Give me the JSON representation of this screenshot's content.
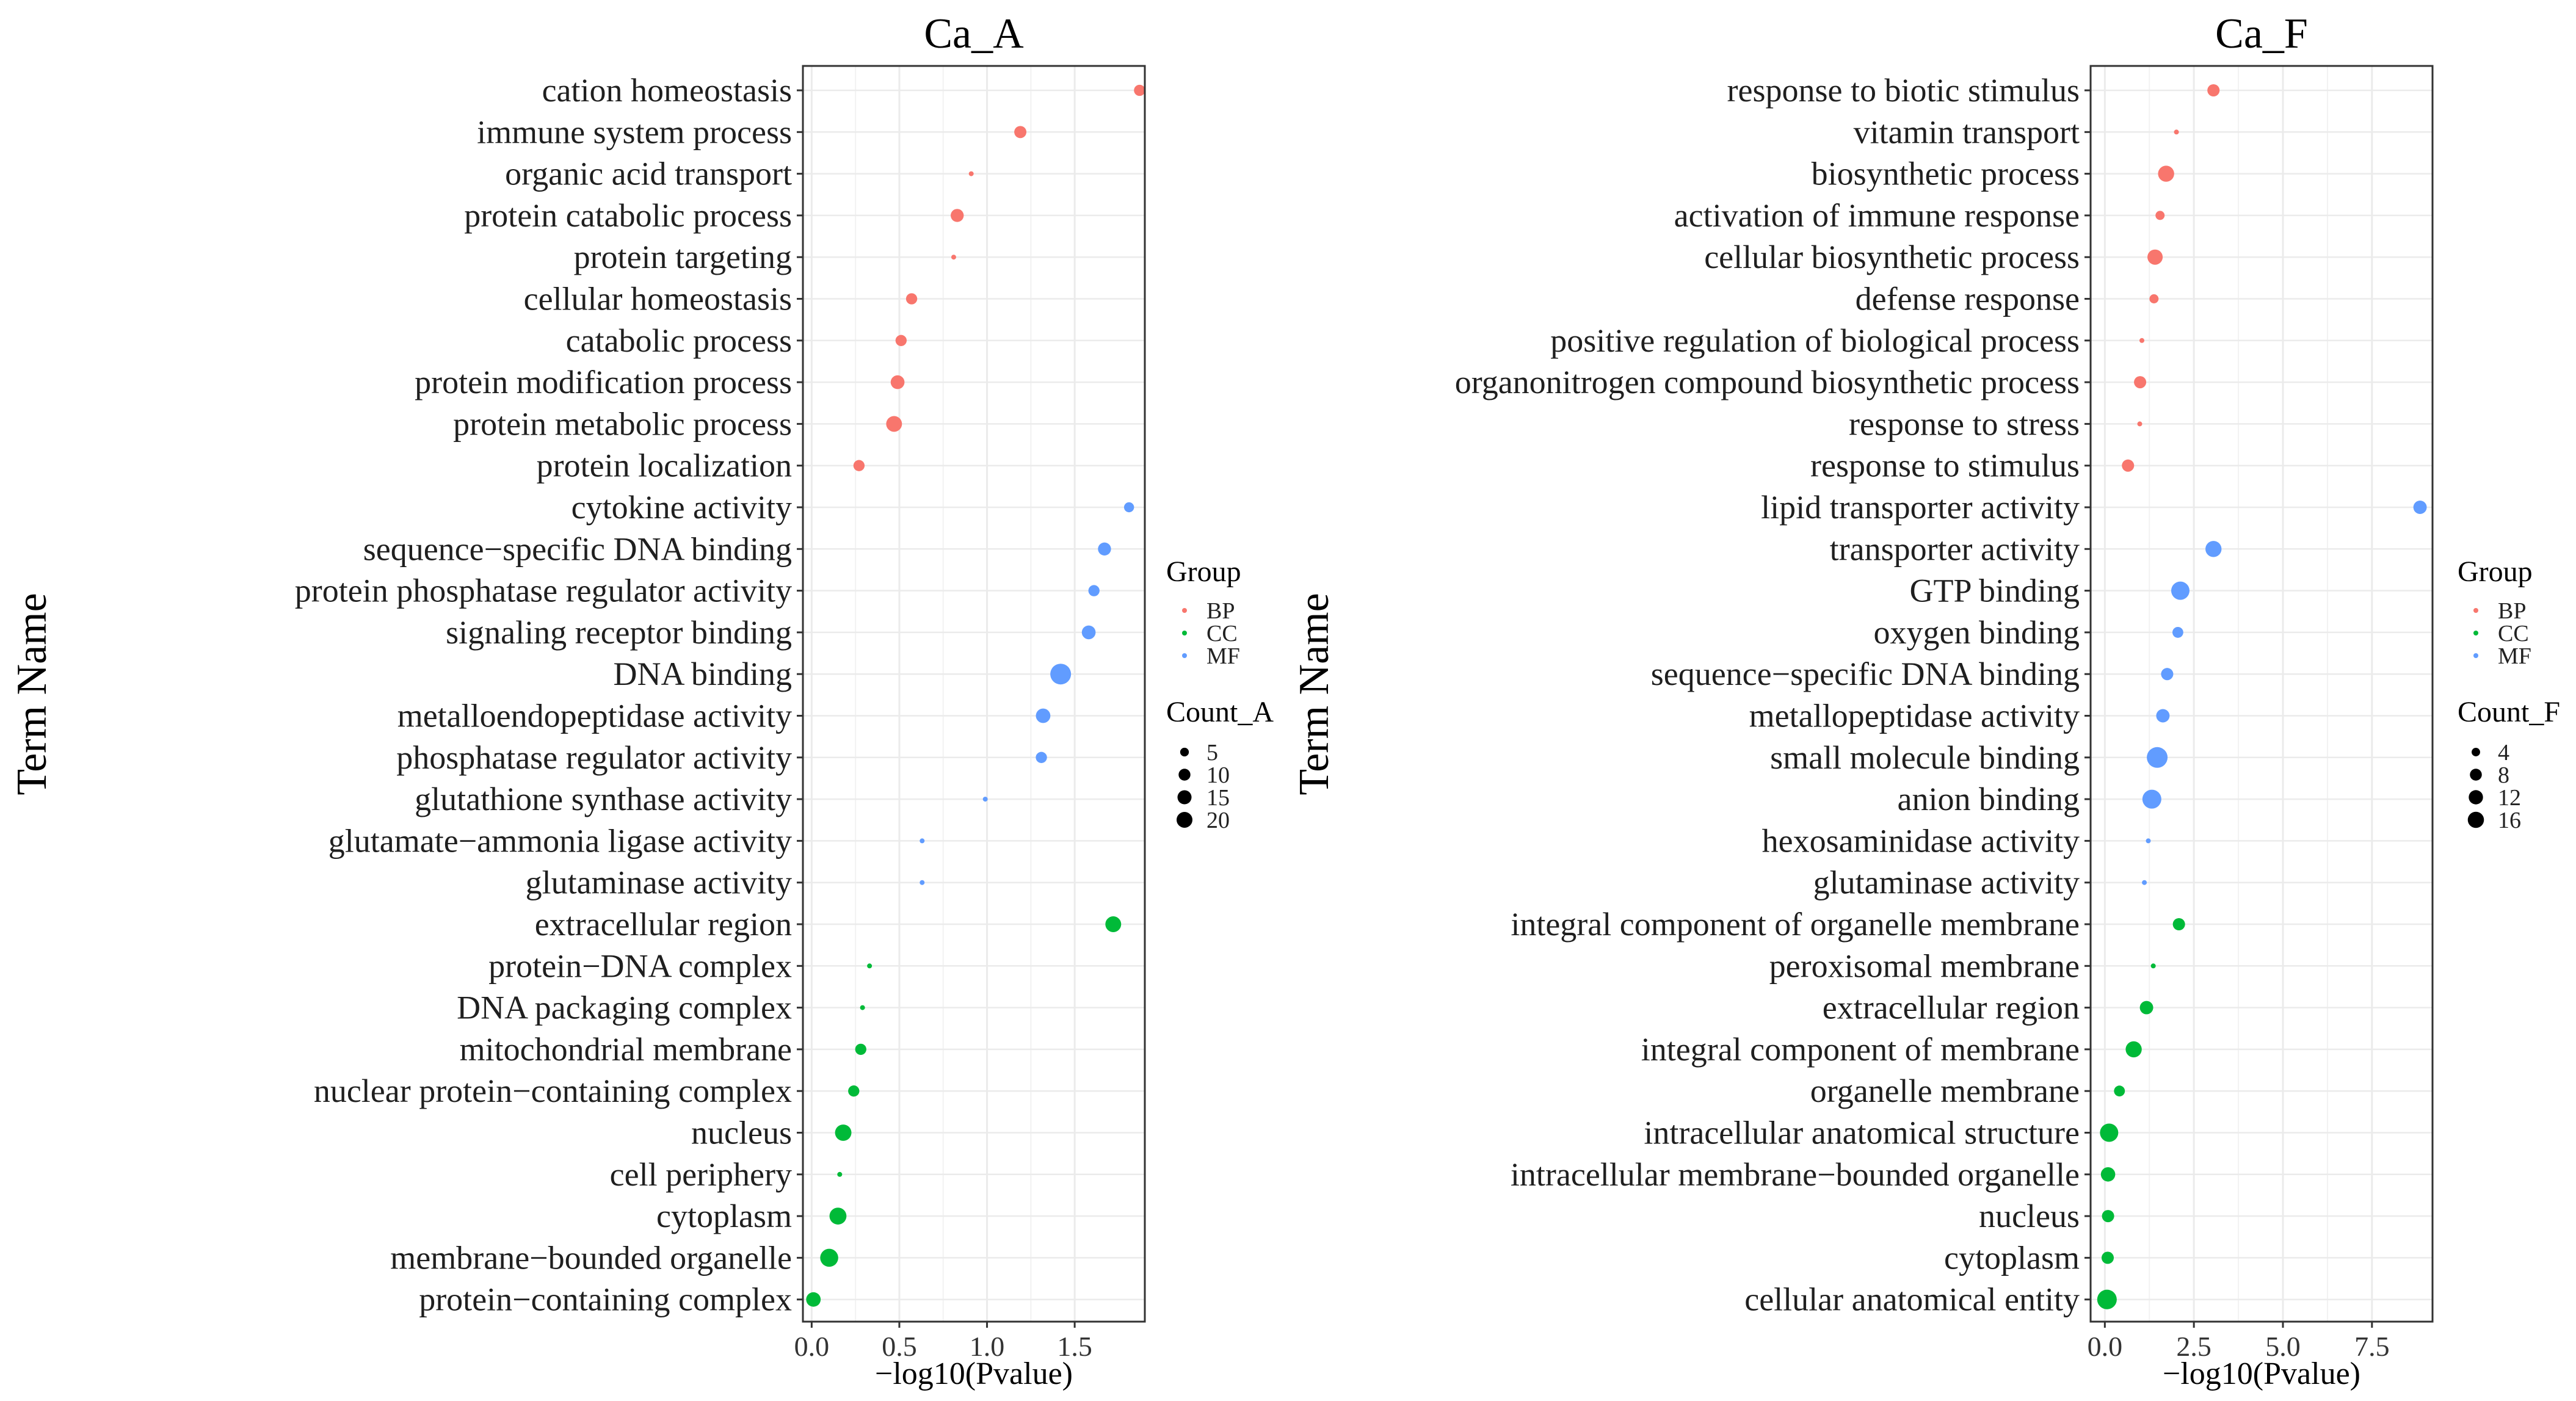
{
  "figure": {
    "y_axis_label": "Term Name"
  },
  "chart_data": [
    {
      "type": "scatter",
      "title": "Ca_A",
      "xlabel": "−log10(Pvalue)",
      "ylabel": "Term Name",
      "xlim": [
        -0.05,
        1.9
      ],
      "xticks": [
        0.0,
        0.5,
        1.0,
        1.5
      ],
      "xtick_labels": [
        "0.0",
        "0.5",
        "1.0",
        "1.5"
      ],
      "grid": true,
      "group_legend_title": "Group",
      "groups": [
        {
          "name": "BP",
          "color": "#F8766D"
        },
        {
          "name": "CC",
          "color": "#00BA38"
        },
        {
          "name": "MF",
          "color": "#619CFF"
        }
      ],
      "size_legend_title": "Count_A",
      "size_legend_values": [
        5,
        10,
        15,
        20
      ],
      "size_range": [
        2,
        21
      ],
      "points": [
        {
          "term": "cation homeostasis",
          "x": 1.87,
          "count": 5,
          "group": "BP"
        },
        {
          "term": "immune system process",
          "x": 1.19,
          "count": 6,
          "group": "BP"
        },
        {
          "term": "organic acid transport",
          "x": 0.91,
          "count": 2,
          "group": "BP"
        },
        {
          "term": "protein catabolic process",
          "x": 0.83,
          "count": 7,
          "group": "BP"
        },
        {
          "term": "protein targeting",
          "x": 0.81,
          "count": 2,
          "group": "BP"
        },
        {
          "term": "cellular homeostasis",
          "x": 0.57,
          "count": 5,
          "group": "BP"
        },
        {
          "term": "catabolic process",
          "x": 0.51,
          "count": 5,
          "group": "BP"
        },
        {
          "term": "protein modification process",
          "x": 0.49,
          "count": 8,
          "group": "BP"
        },
        {
          "term": "protein metabolic process",
          "x": 0.47,
          "count": 11,
          "group": "BP"
        },
        {
          "term": "protein localization",
          "x": 0.27,
          "count": 5,
          "group": "BP"
        },
        {
          "term": "cytokine activity",
          "x": 1.81,
          "count": 4,
          "group": "MF"
        },
        {
          "term": "sequence−specific DNA binding",
          "x": 1.67,
          "count": 7,
          "group": "MF"
        },
        {
          "term": "protein phosphatase regulator activity",
          "x": 1.61,
          "count": 5,
          "group": "MF"
        },
        {
          "term": "signaling receptor binding",
          "x": 1.58,
          "count": 8,
          "group": "MF"
        },
        {
          "term": "DNA binding",
          "x": 1.42,
          "count": 21,
          "group": "MF"
        },
        {
          "term": "metalloendopeptidase activity",
          "x": 1.32,
          "count": 9,
          "group": "MF"
        },
        {
          "term": "phosphatase regulator activity",
          "x": 1.31,
          "count": 5,
          "group": "MF"
        },
        {
          "term": "glutathione synthase activity",
          "x": 0.99,
          "count": 2,
          "group": "MF"
        },
        {
          "term": "glutamate−ammonia ligase activity",
          "x": 0.63,
          "count": 2,
          "group": "MF"
        },
        {
          "term": "glutaminase activity",
          "x": 0.63,
          "count": 2,
          "group": "MF"
        },
        {
          "term": "extracellular region",
          "x": 1.72,
          "count": 11,
          "group": "CC"
        },
        {
          "term": "protein−DNA complex",
          "x": 0.33,
          "count": 2,
          "group": "CC"
        },
        {
          "term": "DNA packaging complex",
          "x": 0.29,
          "count": 2,
          "group": "CC"
        },
        {
          "term": "mitochondrial membrane",
          "x": 0.28,
          "count": 5,
          "group": "CC"
        },
        {
          "term": "nuclear protein−containing complex",
          "x": 0.24,
          "count": 5,
          "group": "CC"
        },
        {
          "term": "nucleus",
          "x": 0.18,
          "count": 12,
          "group": "CC"
        },
        {
          "term": "cell periphery",
          "x": 0.16,
          "count": 2,
          "group": "CC"
        },
        {
          "term": "cytoplasm",
          "x": 0.15,
          "count": 13,
          "group": "CC"
        },
        {
          "term": "membrane−bounded organelle",
          "x": 0.1,
          "count": 15,
          "group": "CC"
        },
        {
          "term": "protein−containing complex",
          "x": 0.01,
          "count": 9,
          "group": "CC"
        }
      ]
    },
    {
      "type": "scatter",
      "title": "Ca_F",
      "xlabel": "−log10(Pvalue)",
      "ylabel": "Term Name",
      "xlim": [
        -0.4,
        9.2
      ],
      "xticks": [
        0.0,
        2.5,
        5.0,
        7.5
      ],
      "xtick_labels": [
        "0.0",
        "2.5",
        "5.0",
        "7.5"
      ],
      "grid": true,
      "group_legend_title": "Group",
      "groups": [
        {
          "name": "BP",
          "color": "#F8766D"
        },
        {
          "name": "CC",
          "color": "#00BA38"
        },
        {
          "name": "MF",
          "color": "#619CFF"
        }
      ],
      "size_legend_title": "Count_F",
      "size_legend_values": [
        4,
        8,
        12,
        16
      ],
      "size_range": [
        2,
        17
      ],
      "points": [
        {
          "term": "response to biotic stimulus",
          "x": 3.05,
          "count": 5,
          "group": "BP"
        },
        {
          "term": "vitamin transport",
          "x": 2.01,
          "count": 2,
          "group": "BP"
        },
        {
          "term": "biosynthetic process",
          "x": 1.72,
          "count": 9,
          "group": "BP"
        },
        {
          "term": "activation of immune response",
          "x": 1.55,
          "count": 3,
          "group": "BP"
        },
        {
          "term": "cellular biosynthetic process",
          "x": 1.41,
          "count": 8,
          "group": "BP"
        },
        {
          "term": "defense response",
          "x": 1.38,
          "count": 3,
          "group": "BP"
        },
        {
          "term": "positive regulation of biological process",
          "x": 1.04,
          "count": 2,
          "group": "BP"
        },
        {
          "term": "organonitrogen compound biosynthetic process",
          "x": 0.99,
          "count": 5,
          "group": "BP"
        },
        {
          "term": "response to stress",
          "x": 0.98,
          "count": 2,
          "group": "BP"
        },
        {
          "term": "response to stimulus",
          "x": 0.65,
          "count": 5,
          "group": "BP"
        },
        {
          "term": "lipid transporter activity",
          "x": 8.85,
          "count": 6,
          "group": "MF"
        },
        {
          "term": "transporter activity",
          "x": 3.05,
          "count": 9,
          "group": "MF"
        },
        {
          "term": "GTP binding",
          "x": 2.12,
          "count": 12,
          "group": "MF"
        },
        {
          "term": "oxygen binding",
          "x": 2.05,
          "count": 4,
          "group": "MF"
        },
        {
          "term": "sequence−specific DNA binding",
          "x": 1.75,
          "count": 5,
          "group": "MF"
        },
        {
          "term": "metallopeptidase activity",
          "x": 1.63,
          "count": 6,
          "group": "MF"
        },
        {
          "term": "small molecule binding",
          "x": 1.47,
          "count": 16,
          "group": "MF"
        },
        {
          "term": "anion binding",
          "x": 1.32,
          "count": 13,
          "group": "MF"
        },
        {
          "term": "hexosaminidase activity",
          "x": 1.22,
          "count": 2,
          "group": "MF"
        },
        {
          "term": "glutaminase activity",
          "x": 1.11,
          "count": 2,
          "group": "MF"
        },
        {
          "term": "integral component of organelle membrane",
          "x": 2.08,
          "count": 5,
          "group": "CC"
        },
        {
          "term": "peroxisomal membrane",
          "x": 1.36,
          "count": 2,
          "group": "CC"
        },
        {
          "term": "extracellular region",
          "x": 1.17,
          "count": 6,
          "group": "CC"
        },
        {
          "term": "integral component of membrane",
          "x": 0.81,
          "count": 9,
          "group": "CC"
        },
        {
          "term": "organelle membrane",
          "x": 0.41,
          "count": 4,
          "group": "CC"
        },
        {
          "term": "intracellular anatomical structure",
          "x": 0.12,
          "count": 12,
          "group": "CC"
        },
        {
          "term": "intracellular membrane−bounded organelle",
          "x": 0.09,
          "count": 7,
          "group": "CC"
        },
        {
          "term": "nucleus",
          "x": 0.09,
          "count": 5,
          "group": "CC"
        },
        {
          "term": "cytoplasm",
          "x": 0.08,
          "count": 5,
          "group": "CC"
        },
        {
          "term": "cellular anatomical entity",
          "x": 0.06,
          "count": 14,
          "group": "CC"
        }
      ]
    }
  ]
}
